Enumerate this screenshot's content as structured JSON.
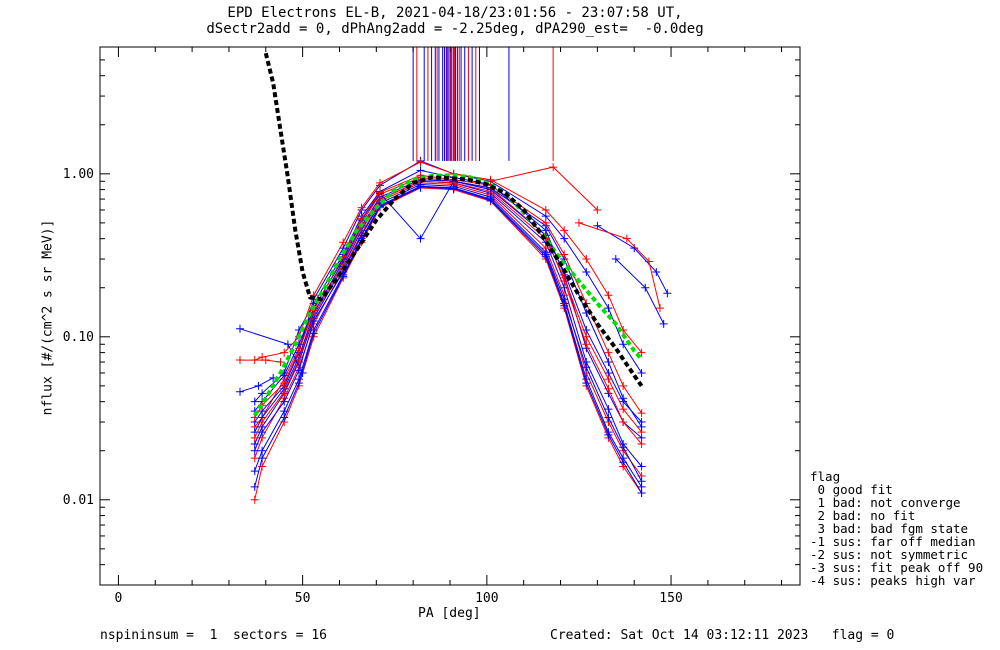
{
  "title_line1": "EPD Electrons EL-B, 2021-04-18/23:01:56 - 23:07:58 UT,",
  "title_line2": "dSectr2add = 0, dPhAng2add = -2.25deg, dPA290_est=  -0.0deg",
  "footer_left": "nspininsum =  1  sectors = 16",
  "footer_right": "Created: Sat Oct 14 03:12:11 2023   flag = 0",
  "legend": {
    "heading": "flag",
    "items": [
      " 0 good fit",
      " 1 bad: not converge",
      " 2 bad: no fit",
      " 3 bad: bad fgm state",
      "-1 sus: far off median",
      "-2 sus: not symmetric",
      "-3 sus: fit peak off 90",
      "-4 sus: peaks high var"
    ]
  },
  "chart_data": {
    "type": "line",
    "xlabel": "PA [deg]",
    "ylabel": "nflux [#/(cm^2 s sr MeV)]",
    "xlim": [
      -5,
      185
    ],
    "ylim": [
      0.003,
      6.0
    ],
    "yscale": "log",
    "x_ticks": [
      0,
      50,
      100,
      150
    ],
    "y_ticks": [
      0.01,
      0.1,
      1.0
    ],
    "y_tick_labels": [
      "0.01",
      "0.10",
      "1.00"
    ],
    "colors": {
      "red": "#ff0000",
      "blue": "#0000ff",
      "green": "#00dd00",
      "black": "#000000"
    },
    "pa_grid": [
      37,
      39,
      45,
      49,
      53,
      61,
      66,
      71,
      82,
      91,
      101,
      116,
      121,
      127,
      133,
      137,
      142
    ],
    "series": [
      {
        "color": "blue",
        "values": [
          0.04,
          0.045,
          0.06,
          0.11,
          0.16,
          0.32,
          0.55,
          0.78,
          1.05,
          0.95,
          0.86,
          0.45,
          0.24,
          0.085,
          0.045,
          0.03,
          0.024
        ]
      },
      {
        "color": "red",
        "values": [
          0.028,
          0.032,
          0.055,
          0.085,
          0.15,
          0.3,
          0.5,
          0.75,
          0.95,
          0.9,
          0.82,
          0.42,
          0.22,
          0.09,
          0.048,
          0.03,
          0.022
        ]
      },
      {
        "color": "blue",
        "values": [
          0.022,
          0.028,
          0.045,
          0.07,
          0.13,
          0.27,
          0.45,
          0.7,
          0.9,
          0.88,
          0.76,
          0.38,
          0.2,
          0.07,
          0.036,
          0.022,
          0.016
        ]
      },
      {
        "color": "red",
        "values": [
          0.018,
          0.024,
          0.042,
          0.065,
          0.12,
          0.26,
          0.43,
          0.68,
          0.88,
          0.86,
          0.74,
          0.35,
          0.18,
          0.06,
          0.03,
          0.02,
          0.014
        ]
      },
      {
        "color": "blue",
        "values": [
          0.015,
          0.02,
          0.035,
          0.055,
          0.11,
          0.24,
          0.4,
          0.64,
          0.84,
          0.82,
          0.7,
          0.32,
          0.16,
          0.055,
          0.026,
          0.018,
          0.012
        ]
      },
      {
        "color": "red",
        "values": [
          0.01,
          0.016,
          0.03,
          0.05,
          0.1,
          0.23,
          0.38,
          0.62,
          0.82,
          0.8,
          0.68,
          0.3,
          0.15,
          0.05,
          0.024,
          0.016,
          0.011
        ]
      },
      {
        "color": "blue",
        "values": [
          0.03,
          0.035,
          0.05,
          0.08,
          0.17,
          0.35,
          0.6,
          0.85,
          1.2,
          1.0,
          0.9,
          0.55,
          0.4,
          0.25,
          0.15,
          0.09,
          0.06
        ]
      },
      {
        "color": "red",
        "values": [
          0.072,
          0.075,
          0.08,
          0.1,
          0.18,
          0.38,
          0.62,
          0.88,
          1.18,
          1.0,
          0.92,
          0.6,
          0.45,
          0.3,
          0.18,
          0.11,
          0.08
        ]
      },
      {
        "color": "blue",
        "values": [
          0.026,
          0.032,
          0.048,
          0.075,
          0.14,
          0.29,
          0.48,
          0.72,
          0.92,
          0.9,
          0.8,
          0.42,
          0.25,
          0.11,
          0.06,
          0.04,
          0.03
        ]
      },
      {
        "color": "red",
        "values": [
          0.024,
          0.03,
          0.046,
          0.072,
          0.135,
          0.28,
          0.47,
          0.7,
          0.9,
          0.88,
          0.78,
          0.4,
          0.23,
          0.1,
          0.055,
          0.036,
          0.026
        ]
      },
      {
        "color": "blue",
        "values": [
          0.02,
          0.026,
          0.04,
          0.062,
          0.125,
          0.25,
          0.42,
          0.66,
          0.86,
          0.84,
          0.72,
          0.33,
          0.17,
          0.065,
          0.032,
          0.021,
          0.013
        ]
      },
      {
        "color": "blue",
        "values": [
          0.035,
          0.04,
          0.058,
          0.09,
          0.15,
          0.3,
          0.52,
          0.76,
          0.4,
          0.9,
          0.82,
          0.48,
          0.3,
          0.14,
          0.07,
          0.042,
          0.028
        ]
      },
      {
        "color": "red",
        "values": [
          0.032,
          0.038,
          0.052,
          0.082,
          0.145,
          0.31,
          0.53,
          0.77,
          0.98,
          0.92,
          0.85,
          0.5,
          0.32,
          0.16,
          0.08,
          0.05,
          0.034
        ]
      },
      {
        "color": "blue",
        "values": [
          0.012,
          0.018,
          0.032,
          0.052,
          0.105,
          0.235,
          0.39,
          0.63,
          0.83,
          0.81,
          0.69,
          0.31,
          0.155,
          0.052,
          0.025,
          0.017,
          0.011
        ]
      }
    ],
    "extra_lines": [
      {
        "color": "blue",
        "x": [
          33,
          46,
          50
        ],
        "values": [
          0.112,
          0.09,
          0.06
        ]
      },
      {
        "color": "red",
        "x": [
          33,
          40,
          44
        ],
        "values": [
          0.072,
          0.072,
          0.07
        ]
      },
      {
        "color": "blue",
        "x": [
          33,
          38,
          42
        ],
        "values": [
          0.046,
          0.05,
          0.056
        ]
      },
      {
        "color": "blue",
        "x": [
          130,
          140,
          146,
          149
        ],
        "values": [
          0.48,
          0.35,
          0.25,
          0.185
        ]
      },
      {
        "color": "red",
        "x": [
          125,
          138,
          144,
          147
        ],
        "values": [
          0.5,
          0.4,
          0.29,
          0.15
        ]
      },
      {
        "color": "red",
        "x": [
          101,
          118,
          130
        ],
        "values": [
          0.9,
          1.1,
          0.6
        ]
      },
      {
        "color": "blue",
        "x": [
          135,
          143,
          148
        ],
        "values": [
          0.3,
          0.2,
          0.12
        ]
      }
    ],
    "vertical_lines": [
      {
        "color": "blue",
        "x": [
          80,
          83,
          85,
          86,
          87,
          88,
          88.5,
          89,
          89.5,
          90,
          90.5,
          91,
          91.5,
          92,
          93,
          94,
          96,
          98,
          106
        ]
      },
      {
        "color": "red",
        "x": [
          81,
          84,
          86.5,
          89.2,
          90.2,
          91.2,
          92.5,
          95,
          97,
          118
        ]
      }
    ],
    "vertical_lines_bottom": 1.2,
    "fit_black": {
      "x": [
        40,
        42,
        44,
        46,
        48,
        50,
        52,
        55,
        60,
        65,
        70,
        75,
        80,
        85,
        90,
        95,
        100,
        105,
        110,
        115,
        120,
        125,
        130,
        135,
        140,
        142
      ],
      "values": [
        5.5,
        3.6,
        1.85,
        0.95,
        0.45,
        0.25,
        0.175,
        0.17,
        0.24,
        0.35,
        0.52,
        0.7,
        0.88,
        0.95,
        0.94,
        0.92,
        0.86,
        0.76,
        0.6,
        0.42,
        0.28,
        0.18,
        0.12,
        0.085,
        0.058,
        0.05
      ]
    },
    "fit_green": {
      "x": [
        37,
        40,
        44,
        48,
        52,
        56,
        60,
        65,
        70,
        75,
        80,
        85,
        90,
        95,
        100,
        105,
        110,
        115,
        120,
        125,
        130,
        135,
        140,
        142
      ],
      "values": [
        0.033,
        0.042,
        0.06,
        0.09,
        0.14,
        0.2,
        0.3,
        0.46,
        0.62,
        0.8,
        0.92,
        0.97,
        0.98,
        0.96,
        0.88,
        0.76,
        0.58,
        0.43,
        0.3,
        0.22,
        0.16,
        0.12,
        0.082,
        0.073
      ]
    }
  }
}
